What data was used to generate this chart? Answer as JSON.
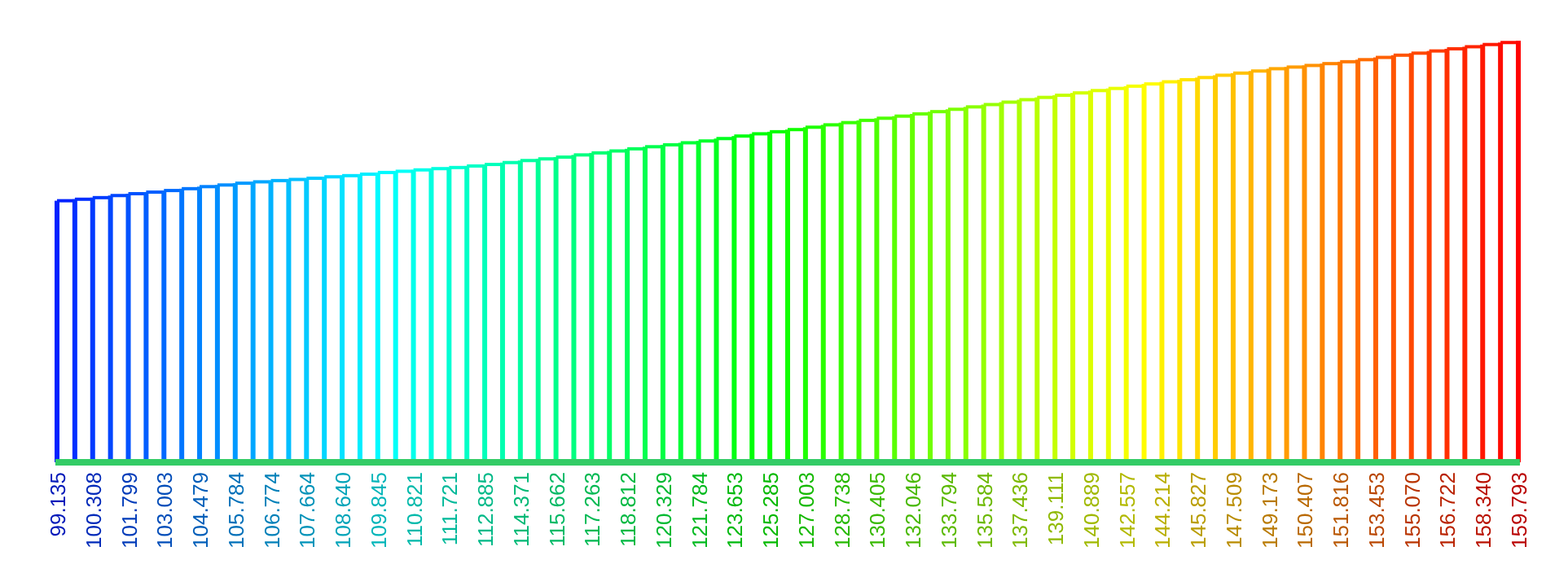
{
  "chart_data": {
    "type": "bar",
    "categories": [
      null,
      null,
      null,
      null,
      null,
      null,
      null,
      null,
      null,
      null,
      null,
      null,
      null,
      null,
      null,
      null,
      null,
      null,
      null,
      null,
      null,
      null,
      null,
      null,
      null,
      null,
      null,
      null,
      null,
      null,
      null,
      null,
      null,
      null,
      null,
      null,
      null,
      null,
      null,
      null,
      null,
      null,
      null,
      null,
      null,
      null,
      null,
      null,
      null,
      null,
      null,
      null,
      null,
      null,
      null,
      null,
      null,
      null,
      null,
      null,
      null,
      null,
      null,
      null,
      null,
      null,
      null,
      null,
      null,
      null,
      null,
      null,
      null,
      null,
      null,
      null,
      null,
      null,
      null,
      null,
      null,
      null,
      null
    ],
    "values": [
      99.135,
      99.7,
      100.308,
      101.1,
      101.799,
      102.4,
      103.003,
      103.7,
      104.479,
      105.1,
      105.784,
      106.3,
      106.774,
      107.2,
      107.664,
      108.2,
      108.64,
      109.2,
      109.845,
      110.3,
      110.821,
      111.3,
      111.721,
      112.3,
      112.885,
      113.6,
      114.371,
      115.0,
      115.662,
      116.5,
      117.263,
      118.0,
      118.812,
      119.6,
      120.329,
      121.1,
      121.784,
      122.7,
      123.653,
      124.5,
      125.285,
      126.1,
      127.003,
      127.9,
      128.738,
      129.6,
      130.405,
      131.2,
      132.046,
      132.9,
      133.794,
      134.7,
      135.584,
      136.5,
      137.436,
      138.3,
      139.111,
      140.0,
      140.889,
      141.7,
      142.557,
      143.4,
      144.214,
      145.0,
      145.827,
      146.7,
      147.509,
      148.3,
      149.173,
      149.8,
      150.407,
      151.1,
      151.816,
      152.6,
      153.453,
      154.3,
      155.07,
      155.9,
      156.722,
      157.5,
      158.34,
      159.1,
      159.793
    ],
    "value_labels": [
      "99.135",
      null,
      "100.308",
      null,
      "101.799",
      null,
      "103.003",
      null,
      "104.479",
      null,
      "105.784",
      null,
      "106.774",
      null,
      "107.664",
      null,
      "108.640",
      null,
      "109.845",
      null,
      "110.821",
      null,
      "111.721",
      null,
      "112.885",
      null,
      "114.371",
      null,
      "115.662",
      null,
      "117.263",
      null,
      "118.812",
      null,
      "120.329",
      null,
      "121.784",
      null,
      "123.653",
      null,
      "125.285",
      null,
      "127.003",
      null,
      "128.738",
      null,
      "130.405",
      null,
      "132.046",
      null,
      "133.794",
      null,
      "135.584",
      null,
      "137.436",
      null,
      "139.111",
      null,
      "140.889",
      null,
      "142.557",
      null,
      "144.214",
      null,
      "145.827",
      null,
      "147.509",
      null,
      "149.173",
      null,
      "150.407",
      null,
      "151.816",
      null,
      "153.453",
      null,
      "155.070",
      null,
      "156.722",
      null,
      "158.340",
      null,
      "159.793"
    ],
    "colors": [
      "#0022ff",
      "#002eff",
      "#003aff",
      "#0046ff",
      "#0052ff",
      "#005eff",
      "#006aff",
      "#0076ff",
      "#0082ff",
      "#008eff",
      "#009aff",
      "#00a6ff",
      "#00b2ff",
      "#00beff",
      "#00caff",
      "#00d6ff",
      "#00e2ff",
      "#00eeff",
      "#00faff",
      "#00fff8",
      "#00ffeb",
      "#00ffe0",
      "#00ffd4",
      "#00ffc7",
      "#00ffbb",
      "#00ffb0",
      "#00ffa3",
      "#00ff97",
      "#00ff8b",
      "#00ff80",
      "#00ff73",
      "#00ff67",
      "#00ff5b",
      "#00ff4f",
      "#00ff43",
      "#00ff37",
      "#00ff2b",
      "#00ff1f",
      "#00ff13",
      "#00ff07",
      "#05ff00",
      "#11ff00",
      "#1dff00",
      "#29ff00",
      "#35ff00",
      "#41ff00",
      "#4dff00",
      "#59ff00",
      "#65ff00",
      "#71ff00",
      "#7dff00",
      "#89ff00",
      "#95ff00",
      "#a1ff00",
      "#adff00",
      "#b9ff00",
      "#c5ff00",
      "#d2ff00",
      "#ddff00",
      "#e9ff00",
      "#f5ff00",
      "#fffc00",
      "#fff100",
      "#ffe500",
      "#ffd800",
      "#ffcc00",
      "#ffc100",
      "#ffb500",
      "#ffa800",
      "#ff9c00",
      "#ff9100",
      "#ff8400",
      "#ff7800",
      "#ff6c00",
      "#ff6000",
      "#ff5400",
      "#ff4800",
      "#ff3c00",
      "#ff3000",
      "#ff2400",
      "#ff1800",
      "#ff0c00",
      "#ff0000"
    ]
  }
}
